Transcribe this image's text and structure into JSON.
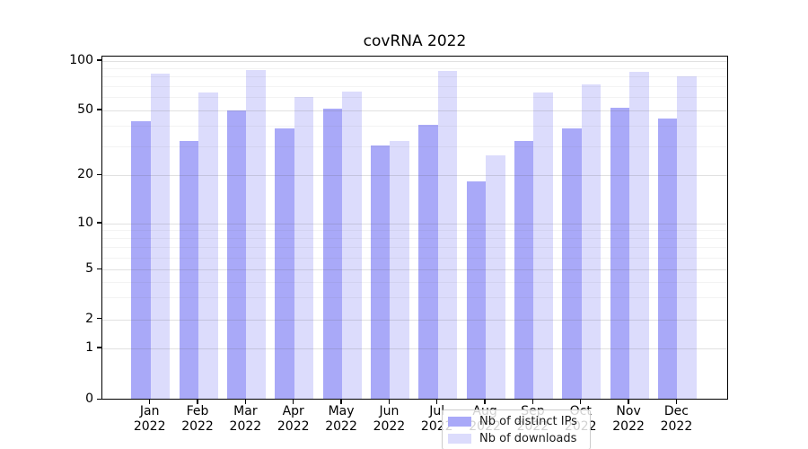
{
  "title": "covRNA 2022",
  "legend": {
    "items": [
      {
        "label": "Nb of distinct IPs",
        "color": "#a9a9f8"
      },
      {
        "label": "Nb of downloads",
        "color": "#dcdcfc"
      }
    ]
  },
  "y_axis": {
    "tick_labels": [
      "0",
      "1",
      "2",
      "5",
      "10",
      "20",
      "50",
      "100"
    ]
  },
  "x_axis": {
    "months": [
      "Jan",
      "Feb",
      "Mar",
      "Apr",
      "May",
      "Jun",
      "Jul",
      "Aug",
      "Sep",
      "Oct",
      "Nov",
      "Dec"
    ],
    "year": "2022"
  },
  "chart_data": {
    "type": "bar",
    "title": "covRNA 2022",
    "categories": [
      "Jan 2022",
      "Feb 2022",
      "Mar 2022",
      "Apr 2022",
      "May 2022",
      "Jun 2022",
      "Jul 2022",
      "Aug 2022",
      "Sep 2022",
      "Oct 2022",
      "Nov 2022",
      "Dec 2022"
    ],
    "series": [
      {
        "name": "Nb of distinct IPs",
        "color": "#a9a9f8",
        "values": [
          42,
          32,
          49,
          38,
          50,
          30,
          40,
          18,
          32,
          38,
          51,
          44
        ]
      },
      {
        "name": "Nb of downloads",
        "color": "#dcdcfc",
        "values": [
          82,
          63,
          86,
          59,
          64,
          32,
          85,
          26,
          63,
          71,
          84,
          79
        ]
      }
    ],
    "xlabel": "",
    "ylabel": "",
    "yscale": "symlog",
    "y_ticks": [
      0,
      1,
      2,
      5,
      10,
      20,
      50,
      100
    ],
    "ylim": [
      0,
      105
    ],
    "grid": true,
    "legend_position": "lower center"
  }
}
